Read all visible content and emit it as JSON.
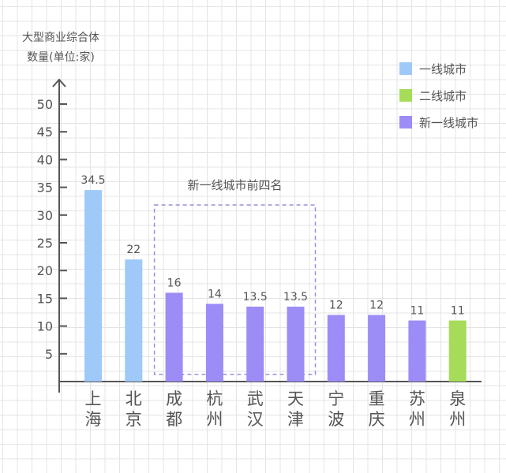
{
  "chart_data": {
    "type": "bar",
    "ylabel_lines": [
      "大型商业综合体",
      "数量(单位:家)"
    ],
    "ylim": [
      0,
      50
    ],
    "yticks": [
      5,
      10,
      15,
      20,
      25,
      30,
      35,
      40,
      45,
      50
    ],
    "categories": [
      "上海",
      "北京",
      "成都",
      "杭州",
      "武汉",
      "天津",
      "宁波",
      "重庆",
      "苏州",
      "泉州"
    ],
    "values": [
      34.5,
      22,
      16,
      14,
      13.5,
      13.5,
      12,
      12,
      11,
      11
    ],
    "value_labels": [
      "34.5",
      "22",
      "16",
      "14",
      "13.5",
      "13.5",
      "12",
      "12",
      "11",
      "11"
    ],
    "groups": [
      "一线城市",
      "一线城市",
      "新一线城市",
      "新一线城市",
      "新一线城市",
      "新一线城市",
      "新一线城市",
      "新一线城市",
      "新一线城市",
      "二线城市"
    ],
    "legend": [
      {
        "label": "一线城市",
        "color": "#9ec9f9"
      },
      {
        "label": "二线城市",
        "color": "#a6dc5a"
      },
      {
        "label": "新一线城市",
        "color": "#9c8cf6"
      }
    ],
    "legend_position": "top-right",
    "annotation": {
      "text": "新一线城市前四名",
      "range": [
        "成都",
        "天津"
      ]
    },
    "grid": true
  }
}
